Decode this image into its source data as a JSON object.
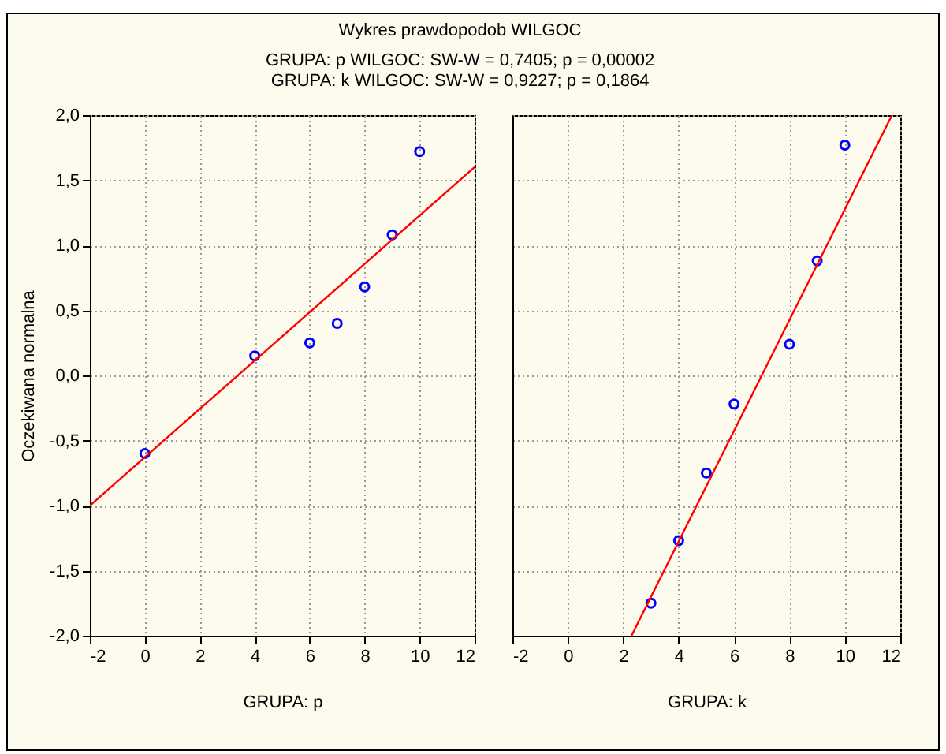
{
  "chart_data": [
    {
      "type": "scatter",
      "title": "Wykres prawdopodob WILGOC",
      "subtitle": [
        "GRUPA: p WILGOC: SW-W = 0,7405; p = 0,00002",
        "GRUPA: k WILGOC: SW-W = 0,9227; p = 0,1864"
      ],
      "xlabel": "GRUPA: p",
      "ylabel": "Oczekiwana normalna",
      "grid": true,
      "xlim": [
        -2,
        12
      ],
      "xticks": [
        -2,
        0,
        2,
        4,
        6,
        8,
        10,
        12
      ],
      "ylim": [
        -2,
        2
      ],
      "yticks": [
        {
          "value": -2,
          "label": "-2,0"
        },
        {
          "value": -1.5,
          "label": "-1,5"
        },
        {
          "value": -1,
          "label": "-1,0"
        },
        {
          "value": -0.5,
          "label": "-0,5"
        },
        {
          "value": 0,
          "label": "0,0"
        },
        {
          "value": 0.5,
          "label": "0,5"
        },
        {
          "value": 1,
          "label": "1,0"
        },
        {
          "value": 1.5,
          "label": "1,5"
        },
        {
          "value": 2,
          "label": "2,0"
        }
      ],
      "series": [
        {
          "marker": "circle",
          "color": "#0000ff",
          "x": [
            0,
            4,
            6,
            7,
            8,
            9,
            10
          ],
          "values": [
            -0.6,
            0.15,
            0.25,
            0.4,
            0.68,
            1.08,
            1.72
          ]
        },
        {
          "type": "line",
          "marker": "none",
          "color": "#ff0000",
          "x": [
            -2,
            12
          ],
          "values": [
            -1.0,
            1.6
          ]
        }
      ]
    },
    {
      "type": "scatter",
      "xlabel": "GRUPA: k",
      "grid": true,
      "tick_labels": "x",
      "xlim": [
        -2,
        12
      ],
      "xticks": [
        -2,
        0,
        2,
        4,
        6,
        8,
        10,
        12
      ],
      "ylim": [
        -2,
        2
      ],
      "yticks": [
        -2,
        -1.5,
        -1,
        -0.5,
        0,
        0.5,
        1,
        1.5,
        2
      ],
      "series": [
        {
          "marker": "circle",
          "color": "#0000ff",
          "x": [
            3,
            4,
            5,
            6,
            8,
            9,
            10
          ],
          "values": [
            -1.75,
            -1.27,
            -0.75,
            -0.22,
            0.24,
            0.88,
            1.77
          ]
        },
        {
          "type": "line",
          "marker": "none",
          "color": "#ff0000",
          "x": [
            2.3,
            11.7
          ],
          "values": [
            -2.0,
            2.0
          ]
        }
      ]
    }
  ]
}
